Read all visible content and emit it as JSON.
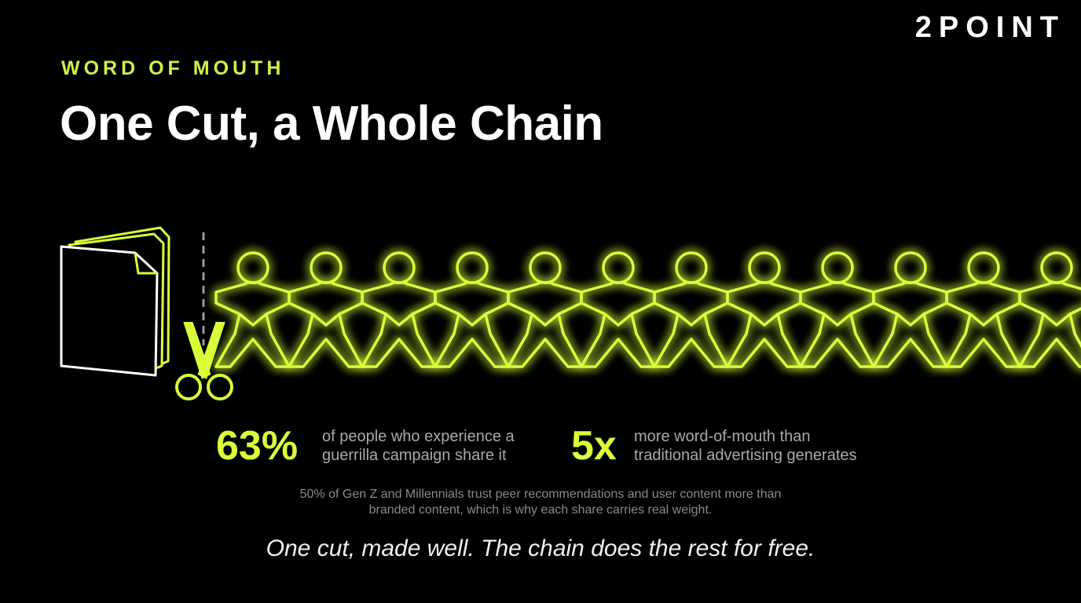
{
  "brand": "2POINT",
  "eyebrow": "WORD OF MOUTH",
  "title": "One Cut, a Whole Chain",
  "stats": [
    {
      "value": "63%",
      "description": [
        "of people who experience a",
        "guerrilla campaign share it"
      ]
    },
    {
      "value": "5x",
      "description": [
        "more word-of-mouth than",
        "traditional advertising generates"
      ]
    }
  ],
  "footnote": [
    "50% of Gen Z and Millennials trust peer recommendations and user content more than",
    "branded content, which is why each share carries real weight."
  ],
  "tagline": "One cut, made well. The chain does the rest for free."
}
